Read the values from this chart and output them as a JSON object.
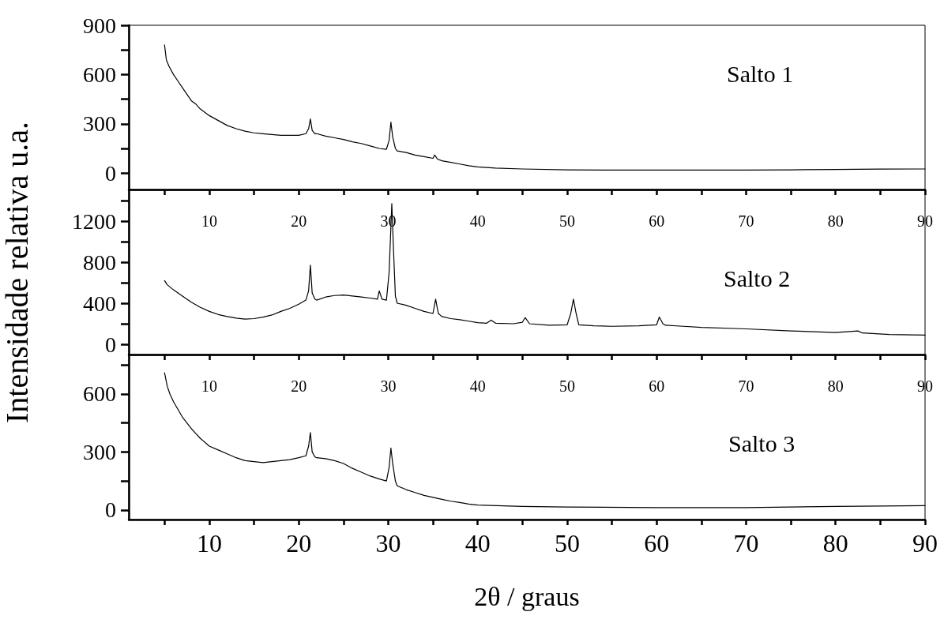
{
  "chart_data": [
    {
      "type": "line",
      "annotations": [
        "Salto 1"
      ],
      "marker": "none",
      "line_style": "solid",
      "xlim": [
        1,
        90
      ],
      "xticks": [
        {
          "value": 5,
          "label": null
        },
        10,
        {
          "value": 15,
          "label": null
        },
        20,
        {
          "value": 25,
          "label": null
        },
        30,
        {
          "value": 35,
          "label": null
        },
        40,
        {
          "value": 45,
          "label": null
        },
        50,
        {
          "value": 55,
          "label": null
        },
        60,
        {
          "value": 65,
          "label": null
        },
        70,
        {
          "value": 75,
          "label": null
        },
        80,
        {
          "value": 85,
          "label": null
        },
        90
      ],
      "ylim": [
        -100,
        900
      ],
      "yticks": [
        0,
        {
          "value": 150,
          "label": null
        },
        300,
        {
          "value": 450,
          "label": null
        },
        600,
        {
          "value": 750,
          "label": null
        },
        900
      ],
      "series": [
        {
          "color": "#000000",
          "x": [
            5,
            5.2,
            5.5,
            6,
            6.5,
            7,
            7.5,
            8,
            8.5,
            9,
            9.5,
            10,
            11,
            12,
            13,
            14,
            15,
            16,
            17,
            18,
            19,
            20,
            20.8,
            21.1,
            21.3,
            21.5,
            21.8,
            22,
            23,
            24,
            25,
            26,
            27,
            28,
            29,
            29.8,
            30.1,
            30.3,
            30.5,
            30.8,
            31,
            32,
            33,
            34,
            35,
            35.2,
            35.5,
            36,
            37,
            38,
            39,
            40,
            42,
            45,
            50,
            55,
            60,
            65,
            70,
            75,
            80,
            85,
            90
          ],
          "values": [
            780,
            690,
            650,
            600,
            560,
            520,
            480,
            440,
            420,
            390,
            370,
            350,
            320,
            290,
            270,
            255,
            245,
            240,
            235,
            230,
            230,
            230,
            240,
            270,
            330,
            260,
            240,
            240,
            225,
            215,
            205,
            190,
            180,
            165,
            150,
            145,
            200,
            310,
            220,
            150,
            135,
            125,
            110,
            100,
            90,
            110,
            85,
            75,
            65,
            55,
            45,
            38,
            30,
            25,
            20,
            18,
            18,
            18,
            18,
            20,
            22,
            24,
            25
          ]
        }
      ]
    },
    {
      "type": "line",
      "ylabel": "Intensidade relativa u.a.",
      "annotations": [
        "Salto 2"
      ],
      "marker": "none",
      "line_style": "solid",
      "xlim": [
        1,
        90
      ],
      "xticks": [
        {
          "value": 5,
          "label": null
        },
        10,
        {
          "value": 15,
          "label": null
        },
        20,
        {
          "value": 25,
          "label": null
        },
        30,
        {
          "value": 35,
          "label": null
        },
        40,
        {
          "value": 45,
          "label": null
        },
        50,
        {
          "value": 55,
          "label": null
        },
        60,
        {
          "value": 65,
          "label": null
        },
        70,
        {
          "value": 75,
          "label": null
        },
        80,
        {
          "value": 85,
          "label": null
        },
        90
      ],
      "ylim": [
        -100,
        1500
      ],
      "yticks": [
        0,
        {
          "value": 200,
          "label": null
        },
        400,
        {
          "value": 600,
          "label": null
        },
        800,
        {
          "value": 1000,
          "label": null
        },
        1200,
        {
          "value": 1400,
          "label": null
        }
      ],
      "series": [
        {
          "color": "#000000",
          "x": [
            5,
            5.3,
            6,
            7,
            8,
            9,
            10,
            11,
            12,
            13,
            14,
            15,
            16,
            17,
            18,
            19,
            20,
            20.8,
            21.1,
            21.3,
            21.5,
            21.8,
            22,
            23,
            24,
            25,
            26,
            27,
            28,
            28.8,
            29,
            29.3,
            29.8,
            30.1,
            30.4,
            30.6,
            30.8,
            31,
            32,
            33,
            34,
            35,
            35.3,
            35.6,
            36,
            37,
            38,
            39,
            40,
            41,
            41.5,
            42,
            44,
            45,
            45.3,
            45.8,
            48,
            50,
            50.4,
            50.7,
            51,
            51.3,
            53,
            55,
            58,
            60,
            60.3,
            60.7,
            61,
            63,
            65,
            70,
            75,
            80,
            82.5,
            83,
            86,
            90
          ],
          "values": [
            620,
            580,
            530,
            470,
            410,
            360,
            320,
            290,
            270,
            255,
            245,
            250,
            265,
            285,
            320,
            350,
            390,
            430,
            520,
            770,
            500,
            440,
            430,
            460,
            475,
            480,
            470,
            460,
            450,
            440,
            520,
            440,
            430,
            700,
            1370,
            900,
            470,
            400,
            380,
            350,
            320,
            300,
            440,
            300,
            270,
            250,
            240,
            225,
            210,
            205,
            235,
            205,
            200,
            215,
            260,
            200,
            185,
            190,
            300,
            440,
            300,
            190,
            180,
            175,
            180,
            190,
            265,
            200,
            185,
            175,
            165,
            150,
            130,
            115,
            130,
            110,
            95,
            90
          ]
        }
      ]
    },
    {
      "type": "line",
      "xlabel": "2θ / graus",
      "annotations": [
        "Salto 3"
      ],
      "marker": "none",
      "line_style": "solid",
      "xlim": [
        1,
        90
      ],
      "xticks": [
        {
          "value": 5,
          "label": null
        },
        10,
        {
          "value": 15,
          "label": null
        },
        20,
        {
          "value": 25,
          "label": null
        },
        30,
        {
          "value": 35,
          "label": null
        },
        40,
        {
          "value": 45,
          "label": null
        },
        50,
        {
          "value": 55,
          "label": null
        },
        60,
        {
          "value": 65,
          "label": null
        },
        70,
        {
          "value": 75,
          "label": null
        },
        80,
        {
          "value": 85,
          "label": null
        },
        90
      ],
      "ylim": [
        -50,
        800
      ],
      "yticks": [
        0,
        {
          "value": 150,
          "label": null
        },
        300,
        {
          "value": 450,
          "label": null
        },
        600,
        {
          "value": 750,
          "label": null
        }
      ],
      "series": [
        {
          "color": "#000000",
          "x": [
            5,
            5.3,
            5.6,
            6,
            6.5,
            7,
            7.5,
            8,
            8.5,
            9,
            10,
            11,
            12,
            13,
            14,
            15,
            16,
            17,
            18,
            19,
            20,
            20.8,
            21.1,
            21.3,
            21.5,
            21.8,
            22,
            23,
            24,
            25,
            26,
            27,
            28,
            29,
            29.8,
            30.1,
            30.3,
            30.5,
            30.8,
            31,
            32,
            33,
            34,
            35,
            36,
            37,
            38,
            39,
            40,
            45,
            50,
            60,
            70,
            80,
            90
          ],
          "values": [
            710,
            640,
            600,
            560,
            520,
            480,
            450,
            420,
            395,
            370,
            330,
            310,
            290,
            270,
            255,
            250,
            245,
            250,
            255,
            260,
            270,
            280,
            330,
            400,
            300,
            275,
            270,
            265,
            255,
            240,
            215,
            195,
            175,
            160,
            150,
            220,
            320,
            240,
            150,
            125,
            105,
            90,
            75,
            65,
            55,
            45,
            38,
            30,
            25,
            18,
            15,
            12,
            12,
            18,
            22
          ]
        }
      ]
    }
  ]
}
